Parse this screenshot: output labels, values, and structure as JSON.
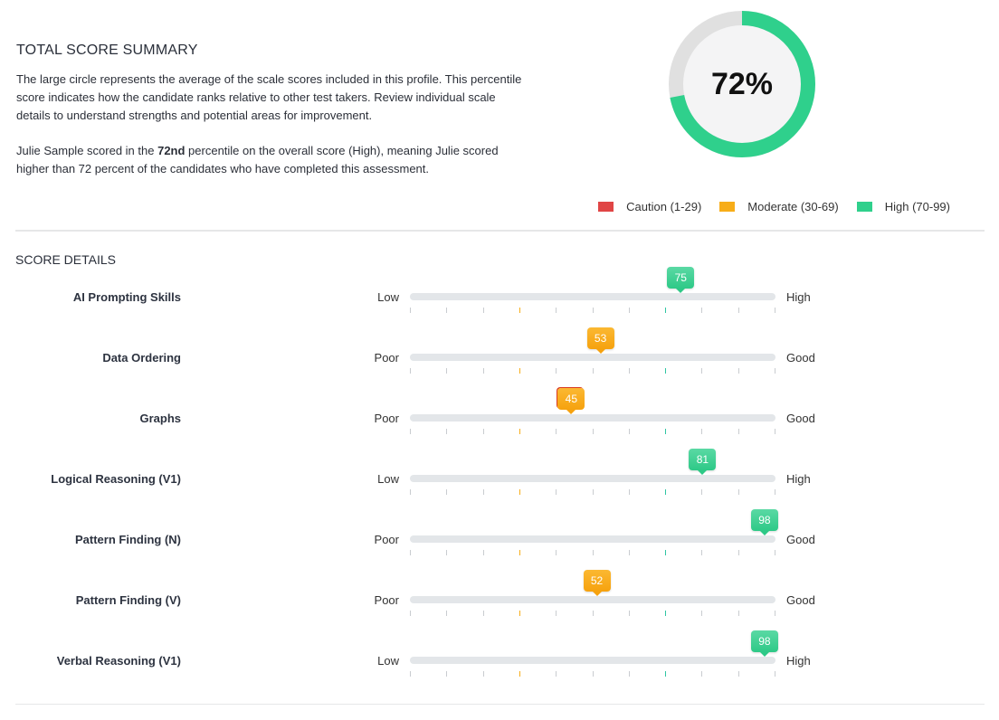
{
  "summary": {
    "title": "TOTAL SCORE SUMMARY",
    "paragraph1": "The large circle represents the average of the scale scores included in this profile. This percentile score indicates how the candidate ranks relative to other test takers. Review individual scale details to understand strengths and potential areas for improvement.",
    "paragraph2_prefix": "Julie Sample scored in the ",
    "paragraph2_bold": "72nd",
    "paragraph2_suffix": " percentile on the overall score (High), meaning Julie scored higher than 72 percent of the candidates who have completed this assessment.",
    "overall_percent": 72,
    "overall_label": "72%"
  },
  "colors": {
    "caution": "#e04545",
    "moderate": "#f7ad19",
    "high": "#2fd08c",
    "ring_bg": "#e0e0e0",
    "ring_inner": "#f4f4f5"
  },
  "legend": [
    {
      "label": "Caution (1-29)",
      "color": "#e04545"
    },
    {
      "label": "Moderate (30-69)",
      "color": "#f7ad19"
    },
    {
      "label": "High (70-99)",
      "color": "#2fd08c"
    }
  ],
  "details": {
    "title": "SCORE DETAILS",
    "rows": [
      {
        "name": "AI Prompting Skills",
        "low": "Low",
        "high": "High",
        "score": 75,
        "band": "high"
      },
      {
        "name": "Data Ordering",
        "low": "Poor",
        "high": "Good",
        "score": 53,
        "band": "moderate"
      },
      {
        "name": "Graphs",
        "low": "Poor",
        "high": "Good",
        "score": 45,
        "band": "moderate"
      },
      {
        "name": "Logical Reasoning (V1)",
        "low": "Low",
        "high": "High",
        "score": 81,
        "band": "high"
      },
      {
        "name": "Pattern Finding (N)",
        "low": "Poor",
        "high": "Good",
        "score": 98,
        "band": "high"
      },
      {
        "name": "Pattern Finding (V)",
        "low": "Poor",
        "high": "Good",
        "score": 52,
        "band": "moderate"
      },
      {
        "name": "Verbal Reasoning (V1)",
        "low": "Low",
        "high": "High",
        "score": 98,
        "band": "high"
      }
    ]
  }
}
